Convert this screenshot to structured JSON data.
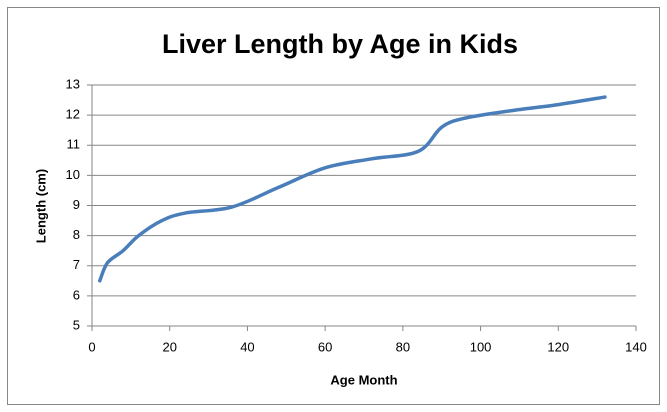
{
  "chart_data": {
    "type": "line",
    "title": "Liver Length by Age in Kids",
    "x_label": "Age Month",
    "y_label": "Length (cm)",
    "x": [
      2,
      4,
      8,
      12,
      18,
      24,
      36,
      48,
      60,
      72,
      84,
      90,
      96,
      108,
      120,
      132
    ],
    "series": [
      {
        "name": "Length",
        "color": "#4a7ebb",
        "values": [
          6.5,
          7.1,
          7.5,
          8.0,
          8.5,
          8.75,
          8.95,
          9.6,
          10.25,
          10.55,
          10.8,
          11.6,
          11.9,
          12.15,
          12.35,
          12.6
        ]
      }
    ],
    "xlim": [
      0,
      140
    ],
    "xticks": [
      0,
      20,
      40,
      60,
      80,
      100,
      120,
      140
    ],
    "ylim": [
      5,
      13
    ],
    "yticks": [
      5,
      6,
      7,
      8,
      9,
      10,
      11,
      12,
      13
    ],
    "grid": true
  }
}
